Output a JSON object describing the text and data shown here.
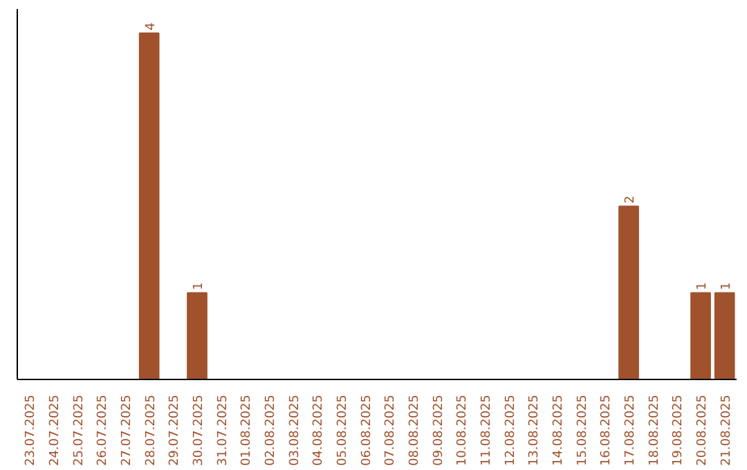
{
  "chart_data": {
    "type": "bar",
    "categories": [
      "23.07.2025",
      "24.07.2025",
      "25.07.2025",
      "26.07.2025",
      "27.07.2025",
      "28.07.2025",
      "29.07.2025",
      "30.07.2025",
      "31.07.2025",
      "01.08.2025",
      "02.08.2025",
      "03.08.2025",
      "04.08.2025",
      "05.08.2025",
      "06.08.2025",
      "07.08.2025",
      "08.08.2025",
      "09.08.2025",
      "10.08.2025",
      "11.08.2025",
      "12.08.2025",
      "13.08.2025",
      "14.08.2025",
      "15.08.2025",
      "16.08.2025",
      "17.08.2025",
      "18.08.2025",
      "19.08.2025",
      "20.08.2025",
      "21.08.2025"
    ],
    "values": [
      0,
      0,
      0,
      0,
      0,
      4,
      0,
      1,
      0,
      0,
      0,
      0,
      0,
      0,
      0,
      0,
      0,
      0,
      0,
      0,
      0,
      0,
      0,
      0,
      0,
      2,
      0,
      0,
      1,
      1
    ],
    "value_labels": [
      null,
      null,
      null,
      null,
      null,
      "4",
      null,
      "1",
      null,
      null,
      null,
      null,
      null,
      null,
      null,
      null,
      null,
      null,
      null,
      null,
      null,
      null,
      null,
      null,
      null,
      "2",
      null,
      null,
      "1",
      "1"
    ],
    "color": "#a0522d",
    "grid": false
  }
}
